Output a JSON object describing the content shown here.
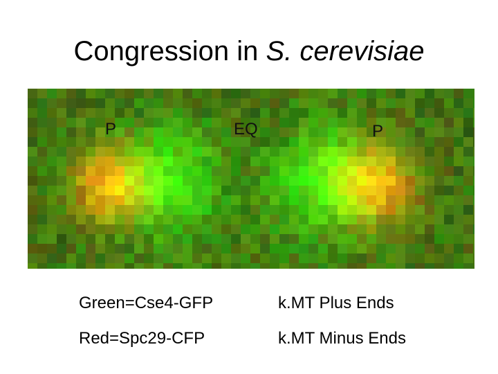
{
  "title": {
    "text": "Congression in",
    "species": "S. cerevisiae"
  },
  "image_labels": [
    "P",
    "EQ",
    "P"
  ],
  "legend": [
    {
      "marker": "Green=Cse4-GFP",
      "meaning": "k.MT Plus Ends"
    },
    {
      "marker": "Red=Spc29-CFP",
      "meaning": "k.MT Minus Ends"
    }
  ]
}
